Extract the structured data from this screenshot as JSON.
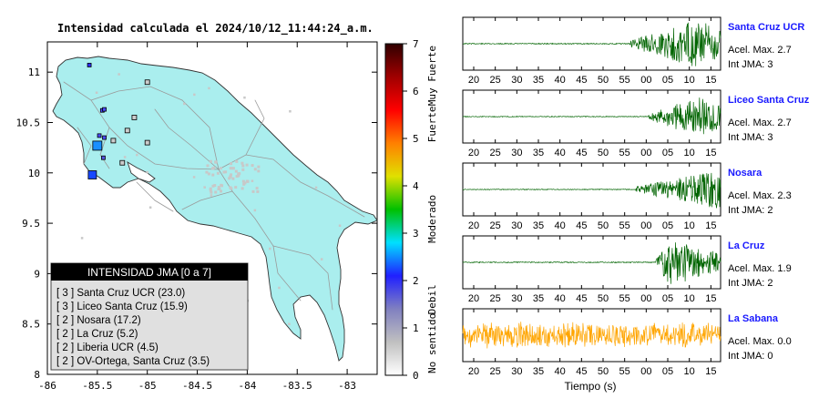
{
  "map": {
    "title": "Intensidad calculada el 2024/10/12_11:44:24_a.m.",
    "x_ticks": [
      "-86",
      "-85.5",
      "-85",
      "-84.5",
      "-84",
      "-83.5",
      "-83"
    ],
    "y_ticks": [
      "11",
      "10.5",
      "10",
      "9.5",
      "9",
      "8.5",
      "8"
    ],
    "xlim": [
      -86,
      -82.7
    ],
    "ylim": [
      8,
      11.3
    ],
    "colors": {
      "land": "#aaeeee",
      "border": "#222222",
      "roads": "#999999",
      "sea": "#ffffff"
    },
    "stations": [
      {
        "lon": -85.5,
        "lat": 10.27,
        "size": 10,
        "color": "#1a8fff"
      },
      {
        "lon": -85.55,
        "lat": 9.98,
        "size": 9,
        "color": "#1848ff"
      },
      {
        "lon": -85.58,
        "lat": 11.07,
        "size": 4,
        "color": "#2c2cff"
      },
      {
        "lon": -85.45,
        "lat": 10.62,
        "size": 4,
        "color": "#4a4aff"
      },
      {
        "lon": -85.43,
        "lat": 10.63,
        "size": 4,
        "color": "#4a4aff"
      },
      {
        "lon": -85.48,
        "lat": 10.37,
        "size": 4,
        "color": "#4a4aff"
      },
      {
        "lon": -85.43,
        "lat": 10.35,
        "size": 4,
        "color": "#4a4aff"
      },
      {
        "lon": -85.44,
        "lat": 10.15,
        "size": 4,
        "color": "#5555dd"
      },
      {
        "lon": -85.0,
        "lat": 10.9,
        "size": 5,
        "color": "#cccccc"
      },
      {
        "lon": -85.13,
        "lat": 10.55,
        "size": 5,
        "color": "#cccccc"
      },
      {
        "lon": -85.2,
        "lat": 10.42,
        "size": 5,
        "color": "#cccccc"
      },
      {
        "lon": -85.34,
        "lat": 10.32,
        "size": 5,
        "color": "#cccccc"
      },
      {
        "lon": -85.25,
        "lat": 10.1,
        "size": 5,
        "color": "#cccccc"
      },
      {
        "lon": -85.0,
        "lat": 10.3,
        "size": 5,
        "color": "#cccccc"
      }
    ],
    "legend": {
      "title": "INTENSIDAD JMA [0 a 7]",
      "items": [
        "[ 3 ]  Santa Cruz UCR (23.0)",
        "[ 3 ]  Liceo Santa Cruz (15.9)",
        "[ 2 ]  Nosara (17.2)",
        "[ 2 ]  La Cruz (5.2)",
        "[ 2 ]  Liberia UCR (4.5)",
        "[ 2 ]  OV-Ortega, Santa Cruz (3.5)"
      ]
    }
  },
  "colorbar": {
    "ticks": [
      "7",
      "6",
      "5",
      "4",
      "3",
      "2",
      "1",
      "0"
    ],
    "labels": [
      "Muy Fuerte",
      "Fuerte",
      "Moderado",
      "Debil",
      "No sentido"
    ],
    "stops": [
      "#ffffff",
      "#c0c0c0",
      "#8080c0",
      "#2020ff",
      "#00e0ff",
      "#00c000",
      "#e0e000",
      "#ff8000",
      "#ff0000",
      "#a00000",
      "#300000"
    ]
  },
  "chart_data": {
    "type": "line",
    "xlabel": "Tiempo (s)",
    "x_ticks": [
      "20",
      "25",
      "30",
      "35",
      "40",
      "45",
      "50",
      "55",
      "00",
      "05",
      "10",
      "15"
    ],
    "panels": [
      {
        "name": "Santa Cruz UCR",
        "acel_text": "Acel. Max. 2.7",
        "jma_text": "Int JMA: 3",
        "color": "#006400",
        "onset": 0.65,
        "peak": 0.9,
        "amp": 1.0
      },
      {
        "name": "Liceo Santa Cruz",
        "acel_text": "Acel. Max. 2.7",
        "jma_text": "Int JMA: 3",
        "color": "#006400",
        "onset": 0.72,
        "peak": 0.9,
        "amp": 0.85
      },
      {
        "name": "Nosara",
        "acel_text": "Acel. Max. 2.3",
        "jma_text": "Int JMA: 2",
        "color": "#006400",
        "onset": 0.67,
        "peak": 0.98,
        "amp": 0.8
      },
      {
        "name": "La Cruz",
        "acel_text": "Acel. Max. 1.9",
        "jma_text": "Int JMA: 2",
        "color": "#006400",
        "onset": 0.75,
        "peak": 0.8,
        "amp": 1.0
      },
      {
        "name": "La Sabana",
        "acel_text": "Acel. Max. 0.0",
        "jma_text": "Int JMA: 0",
        "color": "#ffa500",
        "onset": 0.0,
        "peak": 0.0,
        "amp": 0.6
      }
    ]
  }
}
